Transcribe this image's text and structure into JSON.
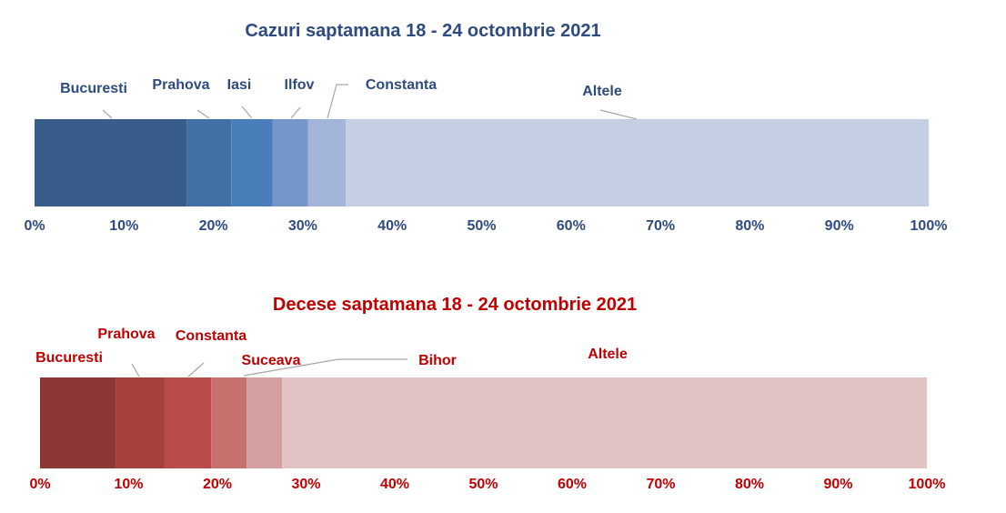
{
  "chart_data": [
    {
      "type": "bar",
      "title": "Cazuri saptamana 18 - 24 octombrie 2021",
      "categories": [
        "Bucuresti",
        "Prahova",
        "Iasi",
        "Ilfov",
        "Constanta",
        "Altele"
      ],
      "values": [
        17.0,
        5.0,
        4.6,
        4.0,
        4.2,
        65.2
      ],
      "stacked": true,
      "xlim": [
        0,
        100
      ],
      "x_tick_labels": [
        "0%",
        "10%",
        "20%",
        "30%",
        "40%",
        "50%",
        "60%",
        "70%",
        "80%",
        "90%",
        "100%"
      ],
      "colors": [
        "#385d8a",
        "#416fa6",
        "#4a7ebb",
        "#7596c8",
        "#a2b5d8",
        "#c4cfe3"
      ],
      "text_color": "#2e4b80",
      "grid": false,
      "legend": "none"
    },
    {
      "type": "bar",
      "title": "Decese saptamana 18 - 24 octombrie 2021",
      "categories": [
        "Bucuresti",
        "Prahova",
        "Constanta",
        "Suceava",
        "Bihor",
        "Altele"
      ],
      "values": [
        8.6,
        5.4,
        5.3,
        4.0,
        4.0,
        72.7
      ],
      "stacked": true,
      "xlim": [
        0,
        100
      ],
      "x_tick_labels": [
        "0%",
        "10%",
        "20%",
        "30%",
        "40%",
        "50%",
        "60%",
        "70%",
        "80%",
        "90%",
        "100%"
      ],
      "colors": [
        "#8c3836",
        "#a6403d",
        "#b94c48",
        "#c7716f",
        "#d3a09f",
        "#e2c3c4"
      ],
      "text_color": "#c00000",
      "grid": false,
      "legend": "none"
    }
  ]
}
